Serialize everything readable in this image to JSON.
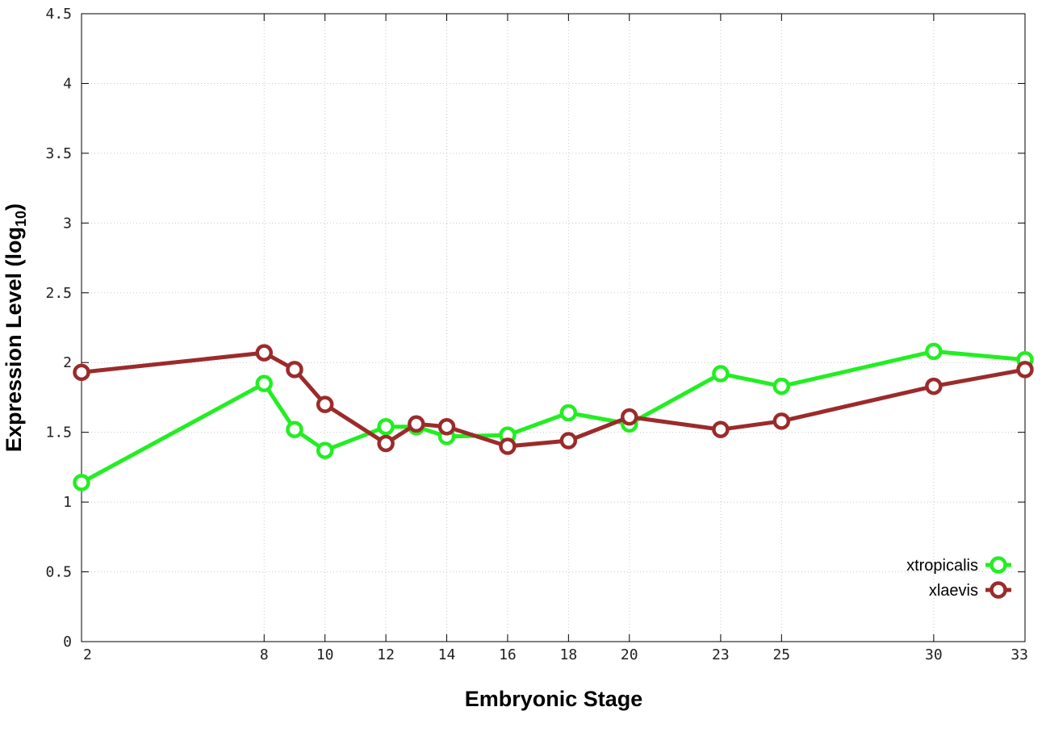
{
  "chart_data": {
    "type": "line",
    "title": "",
    "xlabel": "Embryonic Stage",
    "ylabel": {
      "main": "Expression Level (log",
      "sub": "10",
      "close": ")"
    },
    "x": [
      2,
      8,
      9,
      10,
      12,
      13,
      14,
      16,
      18,
      20,
      23,
      25,
      30,
      33
    ],
    "x_ticks": [
      2,
      8,
      10,
      12,
      14,
      16,
      18,
      20,
      23,
      25,
      30,
      33
    ],
    "y_ticks": [
      "0",
      "0.5",
      "1",
      "1.5",
      "2",
      "2.5",
      "3",
      "3.5",
      "4",
      "4.5"
    ],
    "xlim": [
      2,
      33
    ],
    "ylim": [
      0,
      4.5
    ],
    "grid": true,
    "legend_position": "bottom-right",
    "series": [
      {
        "name": "xtropicalis",
        "color": "#22ee22",
        "values": [
          1.14,
          1.85,
          1.52,
          1.37,
          1.54,
          1.54,
          1.47,
          1.48,
          1.64,
          1.56,
          1.92,
          1.83,
          2.08,
          2.02
        ]
      },
      {
        "name": "xlaevis",
        "color": "#9b2b2b",
        "values": [
          1.93,
          2.07,
          1.95,
          1.7,
          1.42,
          1.56,
          1.54,
          1.4,
          1.44,
          1.61,
          1.52,
          1.58,
          1.83,
          1.95
        ]
      }
    ]
  }
}
